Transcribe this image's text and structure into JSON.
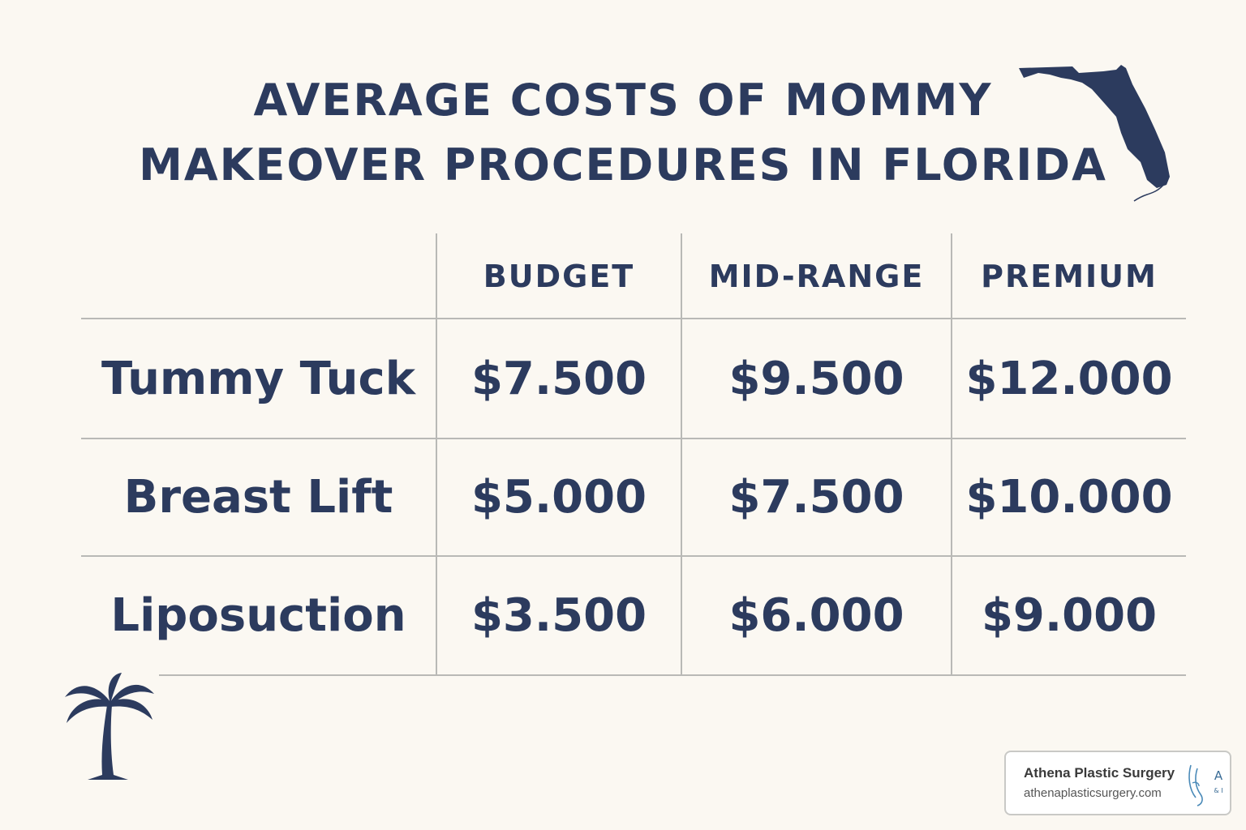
{
  "title": {
    "line1": "AVERAGE COSTS OF MOMMY",
    "line2": "MAKEOVER PROCEDURES IN FLORIDA"
  },
  "table": {
    "columns": [
      "BUDGET",
      "MID-RANGE",
      "PREMIUM"
    ],
    "rows": [
      {
        "label": "Tummy Tuck",
        "values": [
          "$7.500",
          "$9.500",
          "$12.000"
        ]
      },
      {
        "label": "Breast Lift",
        "values": [
          "$5.000",
          "$7.500",
          "$10.000"
        ]
      },
      {
        "label": "Liposuction",
        "values": [
          "$3.500",
          "$6.000",
          "$9.000"
        ]
      }
    ]
  },
  "badge": {
    "name": "Athena Plastic Surgery",
    "url": "athenaplasticsurgery.com",
    "logo_mark": "A",
    "logo_sub": "& I"
  },
  "icons": {
    "florida": "florida-map-icon",
    "palm": "palm-tree-icon"
  },
  "colors": {
    "background": "#fbf8f2",
    "text": "#2c3b5e",
    "grid": "#b9b9b6",
    "logo_accent": "#4a8ab8"
  }
}
